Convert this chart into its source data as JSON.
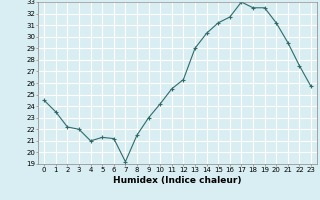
{
  "x": [
    0,
    1,
    2,
    3,
    4,
    5,
    6,
    7,
    8,
    9,
    10,
    11,
    12,
    13,
    14,
    15,
    16,
    17,
    18,
    19,
    20,
    21,
    22,
    23
  ],
  "y": [
    24.5,
    23.5,
    22.2,
    22.0,
    21.0,
    21.3,
    21.2,
    19.2,
    21.5,
    23.0,
    24.2,
    25.5,
    26.3,
    29.0,
    30.3,
    31.2,
    31.7,
    33.0,
    32.5,
    32.5,
    31.2,
    29.5,
    27.5,
    25.7
  ],
  "line_color": "#2e6b6b",
  "marker": "+",
  "marker_size": 3,
  "background_color": "#d9eef2",
  "grid_color": "#ffffff",
  "xlabel": "Humidex (Indice chaleur)",
  "ylim": [
    19,
    33
  ],
  "xlim": [
    -0.5,
    23.5
  ],
  "yticks": [
    19,
    20,
    21,
    22,
    23,
    24,
    25,
    26,
    27,
    28,
    29,
    30,
    31,
    32,
    33
  ],
  "xticks": [
    0,
    1,
    2,
    3,
    4,
    5,
    6,
    7,
    8,
    9,
    10,
    11,
    12,
    13,
    14,
    15,
    16,
    17,
    18,
    19,
    20,
    21,
    22,
    23
  ],
  "tick_fontsize": 5,
  "label_fontsize": 6.5,
  "line_width": 0.8
}
